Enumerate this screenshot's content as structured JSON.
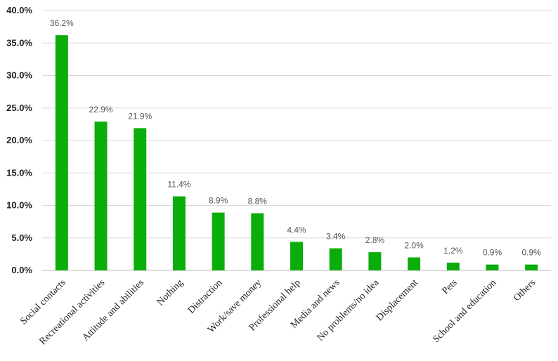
{
  "chart_data": {
    "type": "bar",
    "title": "",
    "xlabel": "",
    "ylabel": "",
    "ylim": [
      0,
      40
    ],
    "ytick_step": 5,
    "ytick_labels": [
      "0.0%",
      "5.0%",
      "10.0%",
      "15.0%",
      "20.0%",
      "25.0%",
      "30.0%",
      "35.0%",
      "40.0%"
    ],
    "grid": true,
    "legend": "none",
    "bar_color": "#0aad0a",
    "grid_color": "#d9d9d9",
    "categories": [
      "Social contacts",
      "Recreational activities",
      "Attitude and abilities",
      "Nothing",
      "Distraction",
      "Work/save money",
      "Professional help",
      "Media and news",
      "No problems/no idea",
      "Displacement",
      "Pets",
      "School and education",
      "Others"
    ],
    "values": [
      36.2,
      22.9,
      21.9,
      11.4,
      8.9,
      8.8,
      4.4,
      3.4,
      2.8,
      2.0,
      1.2,
      0.9,
      0.9
    ],
    "data_labels": [
      "36.2%",
      "22.9%",
      "21.9%",
      "11.4%",
      "8.9%",
      "8.8%",
      "4.4%",
      "3.4%",
      "2.8%",
      "2.0%",
      "1.2%",
      "0.9%",
      "0.9%"
    ]
  }
}
